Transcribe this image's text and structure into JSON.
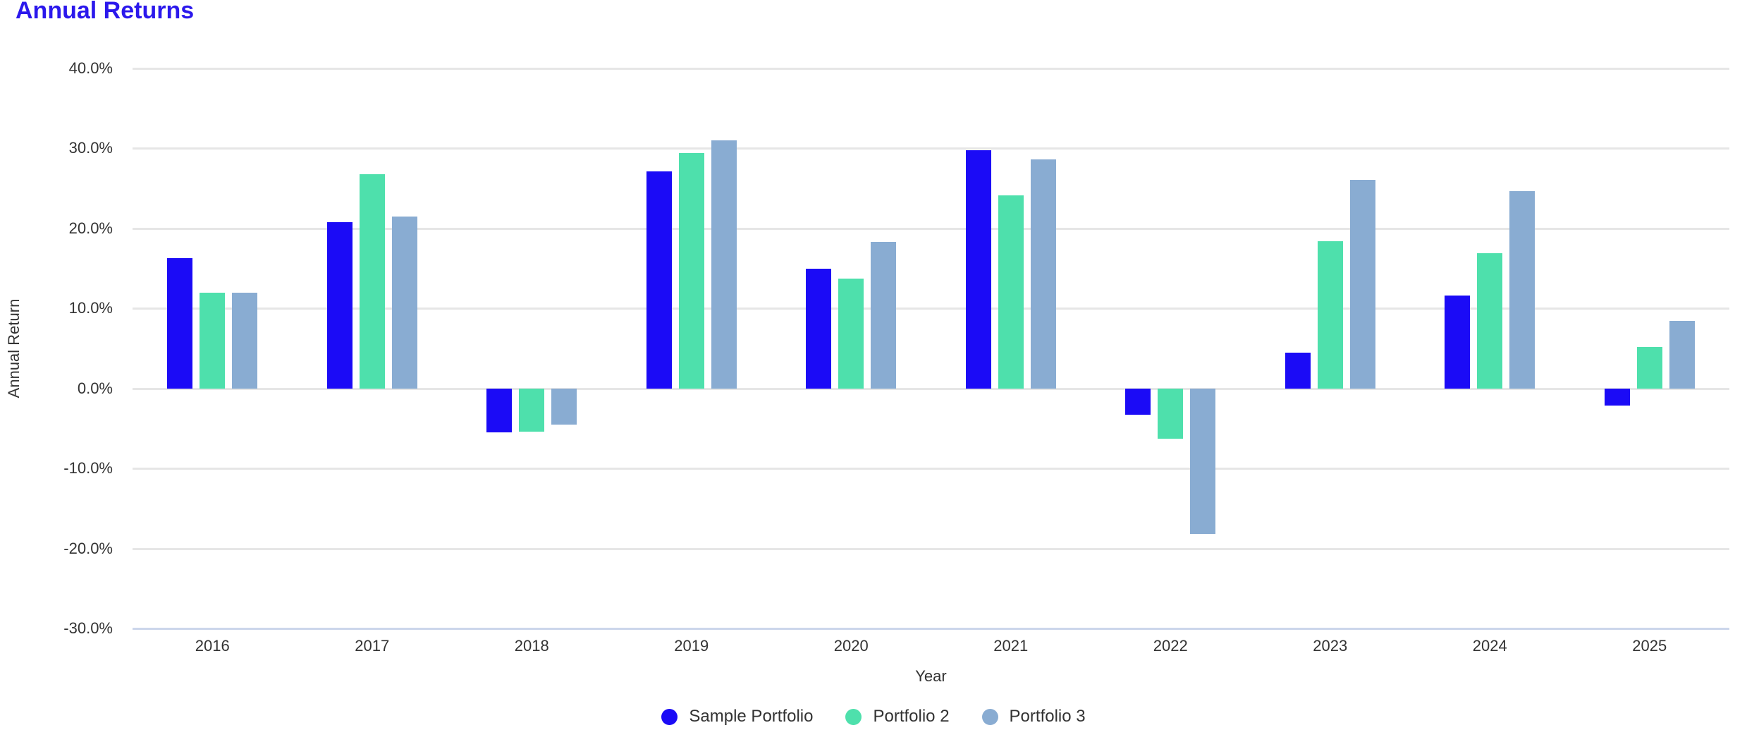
{
  "page": {
    "title": "Annual Returns"
  },
  "colors": {
    "title": "#2b18ec",
    "grid": "#e6e6e6",
    "axis_line": "#ccd6eb",
    "tick_text": "#333333",
    "series_blue": "#1b0bf6",
    "series_mint": "#4ee0ac",
    "series_steel": "#89acd2"
  },
  "chart_data": {
    "type": "bar",
    "title": "Annual Returns",
    "xlabel": "Year",
    "ylabel": "Annual Return",
    "categories": [
      "2016",
      "2017",
      "2018",
      "2019",
      "2020",
      "2021",
      "2022",
      "2023",
      "2024",
      "2025"
    ],
    "series": [
      {
        "name": "Sample Portfolio",
        "color": "#1b0bf6",
        "values": [
          16.3,
          20.8,
          -5.5,
          27.1,
          15.0,
          29.8,
          -3.3,
          4.5,
          11.6,
          -2.1
        ]
      },
      {
        "name": "Portfolio 2",
        "color": "#4ee0ac",
        "values": [
          12.0,
          26.8,
          -5.4,
          29.4,
          13.7,
          24.1,
          -6.3,
          18.4,
          16.9,
          5.2
        ]
      },
      {
        "name": "Portfolio 3",
        "color": "#89acd2",
        "values": [
          12.0,
          21.5,
          -4.5,
          31.0,
          18.3,
          28.6,
          -18.2,
          26.1,
          24.7,
          8.4
        ]
      }
    ],
    "ylim": [
      -30,
      40
    ],
    "yticks": [
      40,
      30,
      20,
      10,
      0,
      -10,
      -20,
      -30
    ],
    "ytick_labels": [
      "40.0%",
      "30.0%",
      "20.0%",
      "10.0%",
      "0.0%",
      "-10.0%",
      "-20.0%",
      "-30.0%"
    ],
    "grid": true,
    "legend_position": "bottom"
  }
}
